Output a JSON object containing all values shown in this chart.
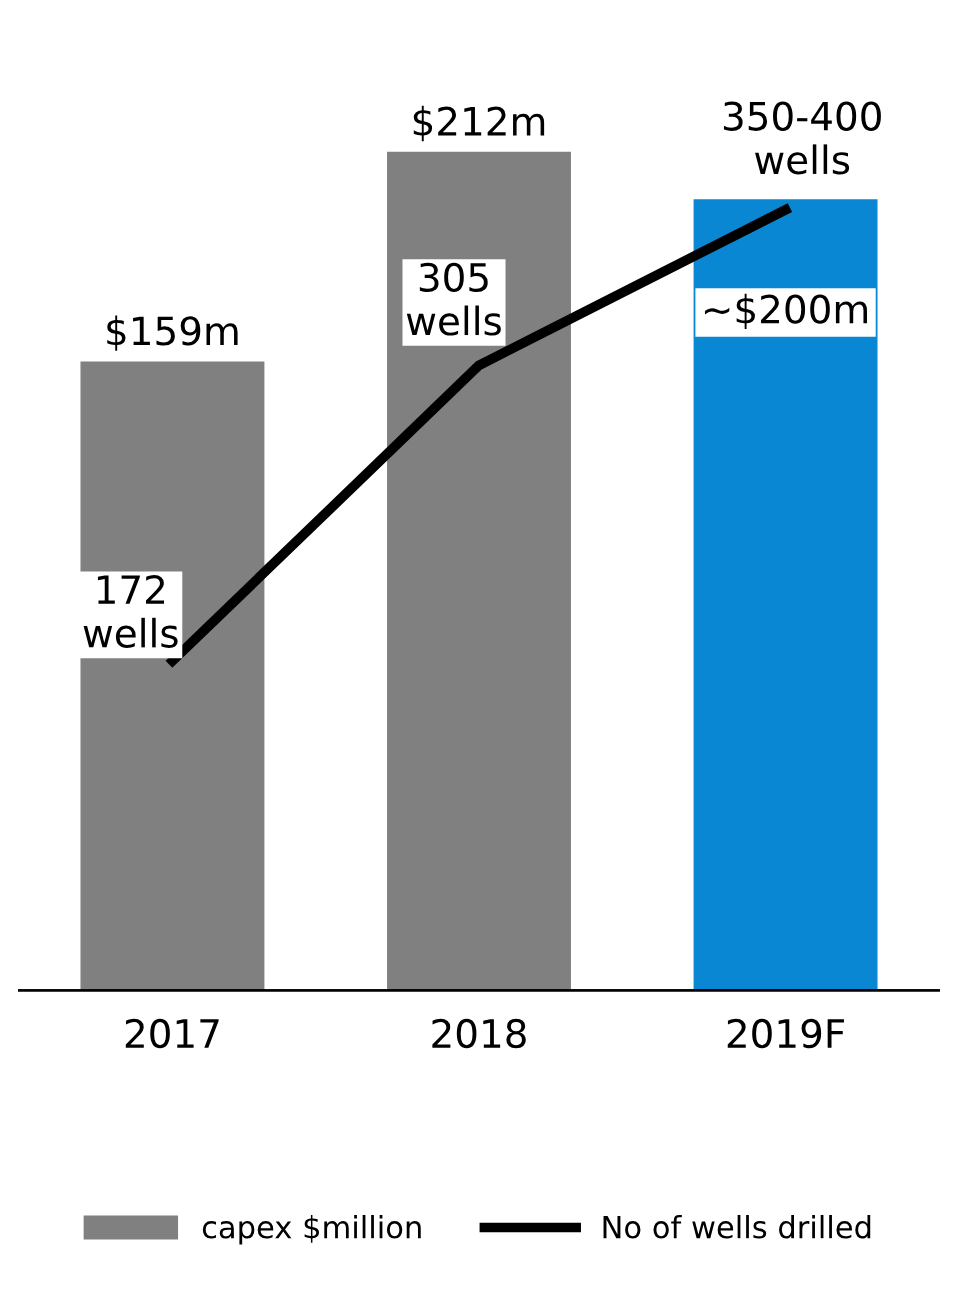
{
  "chart_data": {
    "type": "bar",
    "categories": [
      "2017",
      "2018",
      "2019F"
    ],
    "series": [
      {
        "name": "capex $million",
        "colors": [
          "#808080",
          "#808080",
          "#0a87d2"
        ],
        "values": [
          159,
          212,
          200
        ],
        "value_labels": [
          "$159m",
          "$212m",
          "~$200m"
        ]
      },
      {
        "name": "No of wells drilled",
        "type": "line",
        "axis": "y2",
        "color": "#000000",
        "values": [
          172,
          305,
          375
        ],
        "value_labels": [
          "172\nwells",
          "305\nwells",
          "350-400\nwells"
        ]
      }
    ],
    "tick_labels": "x",
    "grid": false,
    "legend": "bottom",
    "marker": "none",
    "line_style": "solid"
  }
}
